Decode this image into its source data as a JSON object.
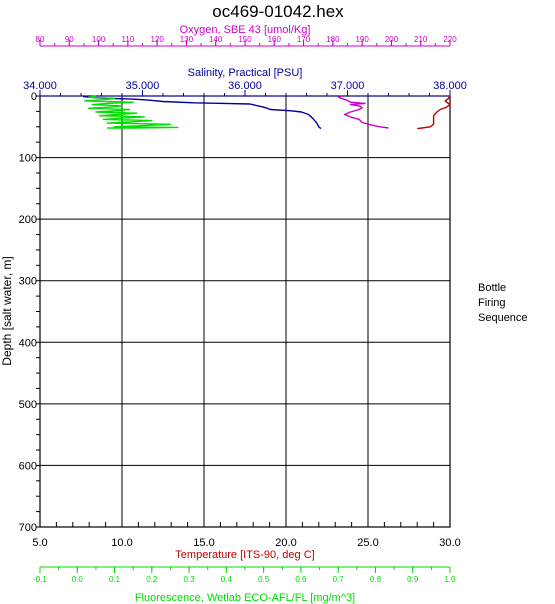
{
  "title": "oc469-01042.hex",
  "side_panel": {
    "line1": "Bottle",
    "line2": "Firing",
    "line3": "Sequence"
  },
  "colors": {
    "temperature": "#c00000",
    "salinity": "#00009a",
    "oxygen": "#cc00cc",
    "fluorescence": "#00dd00",
    "frame": "#000000"
  },
  "chart_data": {
    "type": "line",
    "y_axis": {
      "label": "Depth [salt water, m]",
      "ylim": [
        700,
        0
      ],
      "ticks": [
        0,
        100,
        200,
        300,
        400,
        500,
        600,
        700
      ],
      "inverted": true
    },
    "axes": {
      "oxygen": {
        "label": "Oxygen, SBE 43 [umol/Kg]",
        "range": [
          80,
          220
        ],
        "ticks": [
          80,
          90,
          100,
          110,
          120,
          130,
          140,
          150,
          160,
          170,
          180,
          190,
          200,
          210,
          220
        ],
        "tick_labels": [
          "80",
          "90",
          "100",
          "110",
          "120",
          "130",
          "140",
          "150",
          "160",
          "170",
          "180",
          "190",
          "200",
          "210",
          "220"
        ],
        "position": "top-outer"
      },
      "salinity": {
        "label": "Salinity, Practical [PSU]",
        "range": [
          34.0,
          38.0
        ],
        "ticks": [
          34.0,
          35.0,
          36.0,
          37.0,
          38.0
        ],
        "tick_labels": [
          "34.000",
          "35.000",
          "36.000",
          "37.000",
          "38.000"
        ],
        "position": "top-inner"
      },
      "temperature": {
        "label": "Temperature [ITS-90, deg C]",
        "range": [
          5.0,
          30.0
        ],
        "ticks": [
          5,
          10,
          15,
          20,
          25,
          30
        ],
        "tick_labels": [
          "5.0",
          "10.0",
          "15.0",
          "20.0",
          "25.0",
          "30.0"
        ],
        "position": "bottom-inner"
      },
      "fluorescence": {
        "label": "Fluorescence, Wetlab ECO-AFL/FL [mg/m^3]",
        "range": [
          -0.1,
          1.0
        ],
        "ticks": [
          -0.1,
          0.0,
          0.1,
          0.2,
          0.3,
          0.4,
          0.5,
          0.6,
          0.7,
          0.8,
          0.9,
          1.0
        ],
        "tick_labels": [
          "-0.1",
          "0.0",
          "0.1",
          "0.2",
          "0.3",
          "0.4",
          "0.5",
          "0.6",
          "0.7",
          "0.8",
          "0.9",
          "1.0"
        ],
        "position": "bottom-outer"
      }
    },
    "grid": true,
    "series": [
      {
        "name": "Salinity",
        "axis": "salinity",
        "color": "#00009a",
        "points": [
          [
            34.42,
            1
          ],
          [
            34.55,
            3
          ],
          [
            34.7,
            4
          ],
          [
            34.9,
            5
          ],
          [
            35.0,
            6
          ],
          [
            35.08,
            7
          ],
          [
            35.2,
            9
          ],
          [
            35.5,
            11
          ],
          [
            35.8,
            12
          ],
          [
            36.05,
            13
          ],
          [
            36.18,
            18
          ],
          [
            36.25,
            22
          ],
          [
            36.45,
            24
          ],
          [
            36.55,
            26
          ],
          [
            36.62,
            30
          ],
          [
            36.66,
            36
          ],
          [
            36.7,
            44
          ],
          [
            36.72,
            50
          ],
          [
            36.74,
            53
          ]
        ]
      },
      {
        "name": "Oxygen",
        "axis": "oxygen",
        "color": "#cc00cc",
        "points": [
          [
            183,
            0
          ],
          [
            182,
            2
          ],
          [
            183,
            4
          ],
          [
            185,
            7
          ],
          [
            186,
            10
          ],
          [
            191,
            12
          ],
          [
            186,
            14
          ],
          [
            189,
            16
          ],
          [
            190,
            19
          ],
          [
            189,
            22
          ],
          [
            186,
            26
          ],
          [
            184,
            30
          ],
          [
            186,
            34
          ],
          [
            189,
            38
          ],
          [
            190,
            43
          ],
          [
            193,
            47
          ],
          [
            196,
            50
          ],
          [
            199,
            52
          ]
        ]
      },
      {
        "name": "Temperature",
        "axis": "temperature",
        "color": "#c00000",
        "points": [
          [
            30.0,
            0
          ],
          [
            29.9,
            4
          ],
          [
            29.7,
            8
          ],
          [
            30.0,
            14
          ],
          [
            29.8,
            18
          ],
          [
            29.4,
            22
          ],
          [
            29.2,
            26
          ],
          [
            29.0,
            32
          ],
          [
            29.0,
            40
          ],
          [
            29.0,
            46
          ],
          [
            28.8,
            50
          ],
          [
            28.3,
            52
          ],
          [
            28.0,
            53
          ]
        ]
      },
      {
        "name": "Fluorescence",
        "axis": "fluorescence",
        "color": "#00dd00",
        "points": [
          [
            0.05,
            0
          ],
          [
            0.03,
            2
          ],
          [
            0.1,
            4
          ],
          [
            0.07,
            6
          ],
          [
            0.02,
            8
          ],
          [
            0.15,
            10
          ],
          [
            0.08,
            12
          ],
          [
            0.04,
            14
          ],
          [
            0.12,
            16
          ],
          [
            0.09,
            18
          ],
          [
            0.03,
            20
          ],
          [
            0.14,
            22
          ],
          [
            0.1,
            24
          ],
          [
            0.05,
            26
          ],
          [
            0.16,
            28
          ],
          [
            0.11,
            30
          ],
          [
            0.06,
            32
          ],
          [
            0.18,
            34
          ],
          [
            0.12,
            36
          ],
          [
            0.07,
            38
          ],
          [
            0.2,
            40
          ],
          [
            0.14,
            42
          ],
          [
            0.08,
            44
          ],
          [
            0.25,
            46
          ],
          [
            0.18,
            48
          ],
          [
            0.1,
            50
          ],
          [
            0.27,
            51
          ],
          [
            0.15,
            52
          ],
          [
            0.08,
            52
          ]
        ]
      }
    ]
  }
}
